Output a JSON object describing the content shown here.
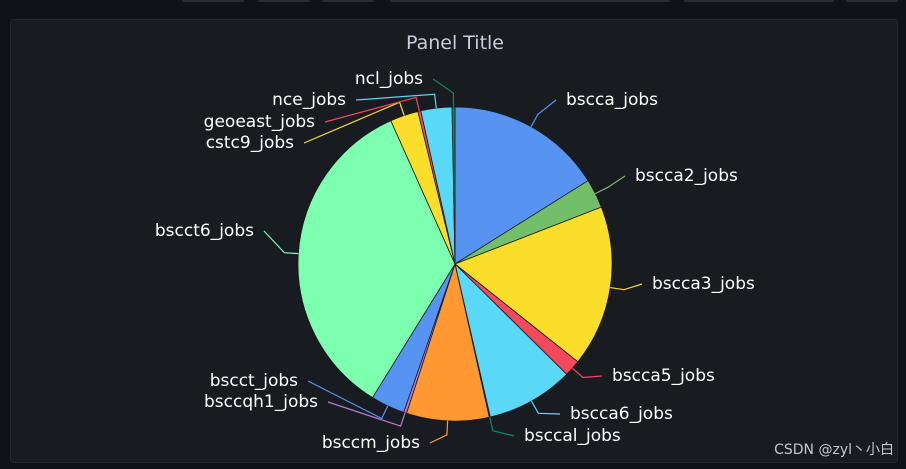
{
  "panel": {
    "title": "Panel Title"
  },
  "watermark": "CSDN @zyl丶小白",
  "chart_data": {
    "type": "pie",
    "title": "Panel Title",
    "start_angle_deg": 0,
    "direction": "clockwise",
    "slices": [
      {
        "label": "bscca_jobs",
        "value": 16.1,
        "color": "#5794f2"
      },
      {
        "label": "bscca2_jobs",
        "value": 3.0,
        "color": "#73bf69"
      },
      {
        "label": "bscca3_jobs",
        "value": 16.6,
        "color": "#fade2a"
      },
      {
        "label": "bscca5_jobs",
        "value": 1.7,
        "color": "#f2495c"
      },
      {
        "label": "bscca6_jobs",
        "value": 9.0,
        "color": "#5ad8f7"
      },
      {
        "label": "bsccal_jobs",
        "value": 0.1,
        "color": "#0e8a5d"
      },
      {
        "label": "bsccm_jobs",
        "value": 8.5,
        "color": "#ff9830"
      },
      {
        "label": "bsccqh1_jobs",
        "value": 0.3,
        "color": "#b877d9"
      },
      {
        "label": "bscct_jobs",
        "value": 3.5,
        "color": "#5794f2"
      },
      {
        "label": "bscct6_jobs",
        "value": 34.5,
        "color": "#7dffb0"
      },
      {
        "label": "cstc9_jobs",
        "value": 2.9,
        "color": "#fade2a"
      },
      {
        "label": "geoeast_jobs",
        "value": 0.3,
        "color": "#f2495c"
      },
      {
        "label": "nce_jobs",
        "value": 3.2,
        "color": "#5ad8f7"
      },
      {
        "label": "ncl_jobs",
        "value": 0.3,
        "color": "#0e8a5d"
      }
    ]
  }
}
